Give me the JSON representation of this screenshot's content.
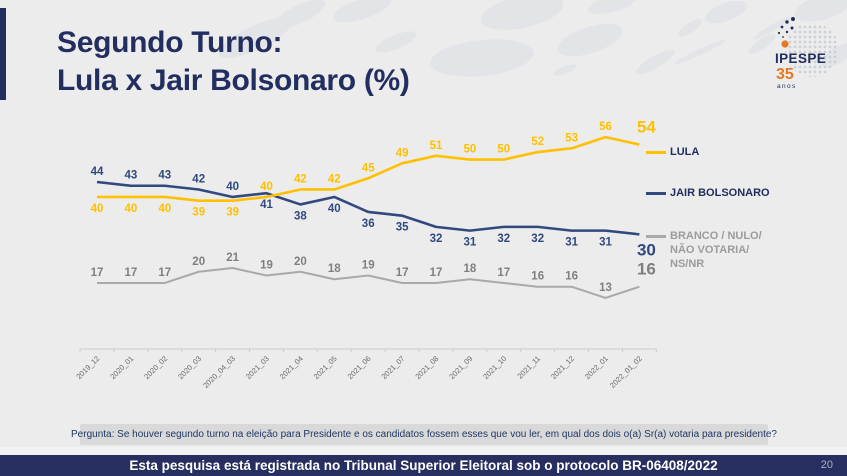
{
  "title": {
    "line1": "Segundo Turno:",
    "line2": "Lula x Jair Bolsonaro (%)"
  },
  "logo": {
    "brand": "IPESPE",
    "years": "35",
    "anos_label": "anos"
  },
  "chart_data": {
    "type": "line",
    "title": "Segundo Turno: Lula x Jair Bolsonaro (%)",
    "categories": [
      "2019_12",
      "2020_01",
      "2020_02",
      "2020_03",
      "2020_04_03",
      "2021_03",
      "2021_04",
      "2021_05",
      "2021_06",
      "2021_07",
      "2021_08",
      "2021_09",
      "2021_10",
      "2021_11",
      "2021_12",
      "2022_01",
      "2022_01_02"
    ],
    "series": [
      {
        "name": "LULA",
        "color": "#FFC000",
        "label_color": "#FFC000",
        "line_width": 2.6,
        "values": [
          40,
          40,
          40,
          39,
          39,
          40,
          42,
          42,
          45,
          49,
          51,
          50,
          50,
          52,
          53,
          56,
          54
        ]
      },
      {
        "name": "JAIR BOLSONARO",
        "color": "#31497E",
        "label_color": "#31497E",
        "line_width": 2.6,
        "values": [
          44,
          43,
          43,
          42,
          40,
          41,
          38,
          40,
          36,
          35,
          32,
          31,
          32,
          32,
          31,
          31,
          30
        ]
      },
      {
        "name": "BRANCO / NULO/ NÃO VOTARIA/ NS/NR",
        "color": "#A9A9A9",
        "label_color": "#7F7F7F",
        "line_width": 2,
        "values": [
          17,
          17,
          17,
          20,
          21,
          19,
          20,
          18,
          19,
          17,
          17,
          18,
          17,
          16,
          16,
          13,
          16
        ]
      }
    ],
    "xlabel": "",
    "ylabel": "",
    "ylim": [
      0,
      60
    ],
    "grid": false,
    "data_labels": true,
    "legend_position": "right"
  },
  "legend": {
    "lula": "LULA",
    "bolsonaro": "JAIR BOLSONARO",
    "branco": [
      "BRANCO / NULO/",
      "NÃO VOTARIA/",
      "NS/NR"
    ]
  },
  "question": "Pergunta:  Se houver segundo turno na eleição para Presidente e os candidatos fossem esses que vou ler, em qual dos dois o(a) Sr(a) votaria para presidente?",
  "footer": {
    "text": "Esta pesquisa está registrada no Tribunal Superior Eleitoral sob o protocolo BR-06408/2022",
    "page_number": "20"
  },
  "colors": {
    "accent_navy": "#212E5F",
    "line_navy": "#31497E",
    "lula_yellow": "#FFC000",
    "gray_line": "#A9A9A9",
    "footer_bg": "#262F5F",
    "question_bg": "#D9D9D9",
    "background": "#ECECEC",
    "logo_orange": "#E87722"
  }
}
